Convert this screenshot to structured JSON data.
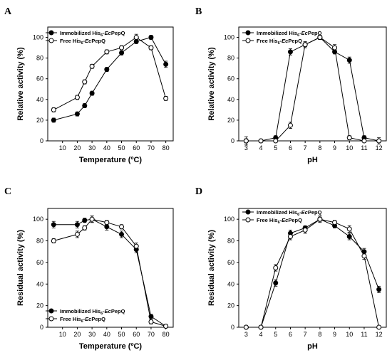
{
  "chart_data": [
    {
      "type": "line",
      "panel_letter": "A",
      "xlabel": "Temperature (ºC)",
      "ylabel": "Relative activity (%)",
      "xlim": [
        0,
        85
      ],
      "ylim": [
        0,
        110
      ],
      "xticks": [
        "10",
        "20",
        "30",
        "40",
        "50",
        "60",
        "70",
        "80"
      ],
      "xtick_values": [
        10,
        20,
        30,
        40,
        50,
        60,
        70,
        80
      ],
      "yticks": [
        "0",
        "20",
        "40",
        "60",
        "80",
        "100"
      ],
      "ytick_values": [
        0,
        20,
        40,
        60,
        80,
        100
      ],
      "legend_position": "top-left",
      "series": [
        {
          "name": "Immobilized His6-EcPepQ",
          "label_pre": "Immobilized His",
          "label_sub": "6",
          "label_post": "-EcPepQ",
          "marker": "filled",
          "x": [
            4,
            20,
            25,
            30,
            40,
            50,
            60,
            70,
            80
          ],
          "y": [
            20,
            26,
            34,
            46,
            69,
            85,
            96,
            100,
            74
          ],
          "err": [
            2,
            2,
            2,
            2,
            2,
            2,
            2,
            2,
            3
          ]
        },
        {
          "name": "Free His6-EcPepQ",
          "label_pre": "Free His",
          "label_sub": "6",
          "label_post": "-EcPepQ",
          "marker": "open",
          "x": [
            4,
            20,
            25,
            30,
            40,
            50,
            60,
            70,
            80
          ],
          "y": [
            30,
            42,
            57,
            72,
            86,
            90,
            100,
            90,
            41
          ],
          "err": [
            2,
            2,
            2,
            2,
            2,
            2,
            3,
            2,
            2
          ]
        }
      ]
    },
    {
      "type": "line",
      "panel_letter": "B",
      "xlabel": "pH",
      "ylabel": "Relative activity (%)",
      "xlim": [
        2.5,
        12.5
      ],
      "ylim": [
        0,
        110
      ],
      "xticks": [
        "3",
        "4",
        "5",
        "6",
        "7",
        "8",
        "9",
        "10",
        "11",
        "12"
      ],
      "xtick_values": [
        3,
        4,
        5,
        6,
        7,
        8,
        9,
        10,
        11,
        12
      ],
      "yticks": [
        "0",
        "20",
        "40",
        "60",
        "80",
        "100"
      ],
      "ytick_values": [
        0,
        20,
        40,
        60,
        80,
        100
      ],
      "legend_position": "top-left",
      "series": [
        {
          "name": "Immobilized His6-EcPepQ",
          "label_pre": "Immobilized His",
          "label_sub": "6",
          "label_post": "-EcPepQ",
          "marker": "filled",
          "x": [
            3,
            4,
            5,
            6,
            7,
            8,
            9,
            10,
            11,
            12
          ],
          "y": [
            0,
            0,
            3,
            86,
            93,
            100,
            86,
            78,
            3,
            0
          ],
          "err": [
            2,
            1,
            2,
            3,
            2,
            2,
            2,
            3,
            2,
            1
          ]
        },
        {
          "name": "Free His6-EcPepQ",
          "label_pre": "Free His",
          "label_sub": "6",
          "label_post": "-EcPepQ",
          "marker": "open",
          "x": [
            3,
            4,
            5,
            6,
            7,
            8,
            9,
            10,
            11,
            12
          ],
          "y": [
            0,
            0,
            0,
            15,
            93,
            100,
            90,
            3,
            0,
            0
          ],
          "err": [
            4,
            1,
            1,
            3,
            3,
            2,
            3,
            2,
            1,
            3
          ]
        }
      ]
    },
    {
      "type": "line",
      "panel_letter": "C",
      "xlabel": "Temperature (ºC)",
      "ylabel": "Residual activity (%)",
      "xlim": [
        0,
        85
      ],
      "ylim": [
        0,
        110
      ],
      "xticks": [
        "10",
        "20",
        "30",
        "40",
        "50",
        "60",
        "70",
        "80"
      ],
      "xtick_values": [
        10,
        20,
        30,
        40,
        50,
        60,
        70,
        80
      ],
      "yticks": [
        "0",
        "20",
        "40",
        "60",
        "80",
        "100"
      ],
      "ytick_values": [
        0,
        20,
        40,
        60,
        80,
        100
      ],
      "legend_position": "bottom-left",
      "series": [
        {
          "name": "Immobilized His6-EcPepQ",
          "label_pre": "Immobilized His",
          "label_sub": "6",
          "label_post": "-EcPepQ",
          "marker": "filled",
          "x": [
            4,
            20,
            25,
            30,
            40,
            50,
            60,
            70,
            80
          ],
          "y": [
            95,
            95,
            99,
            100,
            93,
            86,
            72,
            10,
            1
          ],
          "err": [
            3,
            3,
            2,
            3,
            3,
            3,
            3,
            2,
            1
          ]
        },
        {
          "name": "Free His6-EcPepQ",
          "label_pre": "Free His",
          "label_sub": "6",
          "label_post": "-EcPepQ",
          "marker": "open",
          "x": [
            4,
            20,
            25,
            30,
            40,
            50,
            60,
            70,
            80
          ],
          "y": [
            80,
            86,
            92,
            100,
            97,
            93,
            75,
            5,
            1
          ],
          "err": [
            2,
            3,
            2,
            3,
            2,
            2,
            3,
            2,
            1
          ]
        }
      ]
    },
    {
      "type": "line",
      "panel_letter": "D",
      "xlabel": "pH",
      "ylabel": "Residual  activity (%)",
      "xlim": [
        2.5,
        12.5
      ],
      "ylim": [
        0,
        110
      ],
      "xticks": [
        "3",
        "4",
        "5",
        "6",
        "7",
        "8",
        "9",
        "10",
        "11",
        "12"
      ],
      "xtick_values": [
        3,
        4,
        5,
        6,
        7,
        8,
        9,
        10,
        11,
        12
      ],
      "yticks": [
        "0",
        "20",
        "40",
        "60",
        "80",
        "100"
      ],
      "ytick_values": [
        0,
        20,
        40,
        60,
        80,
        100
      ],
      "legend_position": "top-left",
      "series": [
        {
          "name": "Immobilized His6-EcPepQ",
          "label_pre": "Immobilized His",
          "label_sub": "6",
          "label_post": "-EcPepQ",
          "marker": "filled",
          "x": [
            3,
            4,
            5,
            6,
            7,
            8,
            9,
            10,
            11,
            12
          ],
          "y": [
            0,
            0,
            41,
            87,
            92,
            100,
            94,
            84,
            70,
            35
          ],
          "err": [
            1,
            1,
            3,
            3,
            2,
            3,
            2,
            3,
            3,
            3
          ]
        },
        {
          "name": "Free His6-EcPepQ",
          "label_pre": "Free His",
          "label_sub": "6",
          "label_post": "-EcPepQ",
          "marker": "open",
          "x": [
            3,
            4,
            5,
            6,
            7,
            8,
            9,
            10,
            11,
            12
          ],
          "y": [
            0,
            0,
            55,
            84,
            90,
            100,
            97,
            91,
            66,
            0
          ],
          "err": [
            1,
            1,
            3,
            3,
            3,
            2,
            2,
            3,
            3,
            1
          ]
        }
      ]
    }
  ]
}
